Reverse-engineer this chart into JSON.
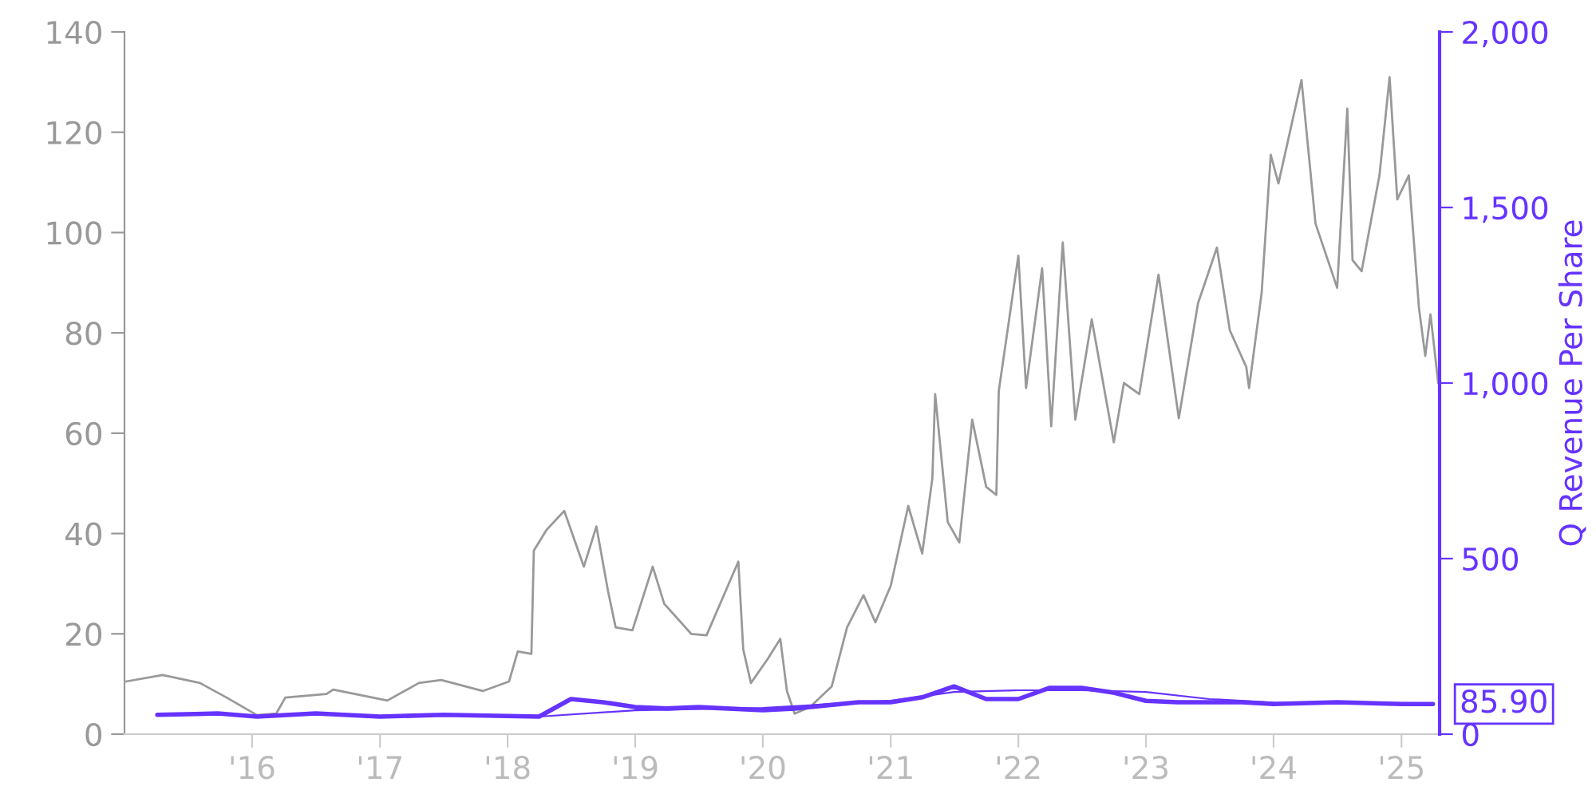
{
  "chart_data": {
    "type": "line",
    "y2label": "Q Revenue Per Share",
    "xlim": [
      "2015-01-01",
      "2025-04-20"
    ],
    "xticks": [
      {
        "value": "2016-01-01",
        "label": "'16"
      },
      {
        "value": "2017-01-01",
        "label": "'17"
      },
      {
        "value": "2018-01-01",
        "label": "'18"
      },
      {
        "value": "2019-01-01",
        "label": "'19"
      },
      {
        "value": "2020-01-01",
        "label": "'20"
      },
      {
        "value": "2021-01-01",
        "label": "'21"
      },
      {
        "value": "2022-01-01",
        "label": "'22"
      },
      {
        "value": "2023-01-01",
        "label": "'23"
      },
      {
        "value": "2024-01-01",
        "label": "'24"
      },
      {
        "value": "2025-01-01",
        "label": "'25"
      }
    ],
    "ylim": [
      0,
      140
    ],
    "yticks": [
      0,
      20,
      40,
      60,
      80,
      100,
      120,
      140
    ],
    "y2lim": [
      0,
      2000
    ],
    "y2ticks": [
      {
        "value": 0,
        "label": "0"
      },
      {
        "value": 500,
        "label": "500"
      },
      {
        "value": 1000,
        "label": "1,000"
      },
      {
        "value": 1500,
        "label": "1,500"
      },
      {
        "value": 2000,
        "label": "2,000"
      }
    ],
    "grid": false,
    "legend": false,
    "marker": "none",
    "line_style": "solid",
    "series": [
      {
        "color": "#999999",
        "x": [
          "2015-01-05",
          "2015-04-20",
          "2015-08-05",
          "2015-10-20",
          "2016-01-15",
          "2016-03-10",
          "2016-04-05",
          "2016-08-01",
          "2016-08-20",
          "2017-01-22",
          "2017-04-22",
          "2017-06-25",
          "2017-10-22",
          "2018-01-05",
          "2018-01-30",
          "2018-03-10",
          "2018-03-17",
          "2018-04-22",
          "2018-06-12",
          "2018-08-07",
          "2018-09-12",
          "2018-10-15",
          "2018-11-06",
          "2018-12-24",
          "2019-02-20",
          "2019-03-25",
          "2019-06-10",
          "2019-07-24",
          "2019-10-23",
          "2019-11-06",
          "2019-11-28",
          "2020-01-15",
          "2020-02-20",
          "2020-03-10",
          "2020-04-01",
          "2020-05-15",
          "2020-07-16",
          "2020-08-29",
          "2020-10-15",
          "2020-11-18",
          "2021-01-01",
          "2021-02-20",
          "2021-04-01",
          "2021-04-30",
          "2021-05-08",
          "2021-06-13",
          "2021-07-16",
          "2021-08-22",
          "2021-10-01",
          "2021-10-30",
          "2021-11-06",
          "2022-01-01",
          "2022-01-23",
          "2022-03-10",
          "2022-04-05",
          "2022-05-08",
          "2022-06-13",
          "2022-07-30",
          "2022-10-01",
          "2022-10-30",
          "2022-12-13",
          "2023-02-06",
          "2023-04-05",
          "2023-05-30",
          "2023-07-23",
          "2023-08-29",
          "2023-10-15",
          "2023-10-23",
          "2023-11-28",
          "2023-12-24",
          "2024-01-15",
          "2024-03-21",
          "2024-04-30",
          "2024-07-01",
          "2024-07-30",
          "2024-08-14",
          "2024-09-09",
          "2024-10-30",
          "2024-11-28",
          "2024-12-20",
          "2025-01-22",
          "2025-02-20",
          "2025-03-10",
          "2025-03-25",
          "2025-04-16"
        ],
        "values": [
          10.5,
          11.8,
          10.2,
          7.3,
          3.8,
          4.1,
          7.3,
          8,
          8.9,
          6.7,
          10.2,
          10.8,
          8.6,
          10.5,
          16.5,
          16,
          36.6,
          40.7,
          44.5,
          33.4,
          41.4,
          28.6,
          21.3,
          20.7,
          33.4,
          26,
          20,
          19.7,
          34.4,
          16.9,
          10.2,
          15,
          19,
          8.6,
          4.1,
          5.4,
          9.5,
          21.3,
          27.7,
          22.3,
          29.6,
          45.5,
          36,
          51,
          67.8,
          42.3,
          38.2,
          62.7,
          49.3,
          47.7,
          68.4,
          95.4,
          69,
          92.9,
          61.4,
          98,
          62.7,
          82.7,
          58.2,
          70,
          67.8,
          91.6,
          63,
          85.9,
          97,
          80.5,
          73.2,
          69,
          88,
          115.5,
          109.8,
          130.4,
          101.8,
          89,
          124.7,
          94.5,
          92.3,
          111.4,
          131,
          106.6,
          111.4,
          85,
          75.4,
          83.7,
          70
        ]
      },
      {
        "color": "#6633ff",
        "axis": "y2",
        "x": [
          "2015-04-05",
          "2015-09-25",
          "2016-01-15",
          "2016-07-01",
          "2017-01-01",
          "2017-07-01",
          "2018-04-01",
          "2018-07-01",
          "2018-10-01",
          "2019-01-01",
          "2019-04-01",
          "2019-07-01",
          "2020-01-01",
          "2020-04-01",
          "2020-10-01",
          "2021-01-01",
          "2021-04-01",
          "2021-07-01",
          "2021-10-01",
          "2022-01-01",
          "2022-04-01",
          "2022-07-01",
          "2022-10-01",
          "2023-01-01",
          "2023-04-01",
          "2023-10-01",
          "2024-01-01",
          "2024-07-01",
          "2025-01-01",
          "2025-04-01"
        ],
        "values": [
          55,
          59,
          50,
          59,
          50,
          55,
          50,
          100,
          91,
          77,
          73,
          77,
          68,
          73,
          91,
          91,
          105,
          136,
          100,
          100,
          132,
          132,
          118,
          95,
          91,
          91,
          86,
          91,
          86,
          85.9
        ],
        "value_labels": [
          null,
          null,
          null,
          null,
          null,
          null,
          null,
          null,
          null,
          null,
          null,
          null,
          null,
          null,
          null,
          null,
          null,
          null,
          null,
          null,
          null,
          null,
          null,
          null,
          null,
          null,
          null,
          null,
          null,
          "85.90"
        ]
      },
      {
        "color": "#6633ff",
        "axis": "y2",
        "x": [
          "2015-04-05",
          "2015-09-25",
          "2016-01-15",
          "2016-07-01",
          "2017-01-01",
          "2017-07-01",
          "2018-04-01",
          "2019-01-01",
          "2020-01-01",
          "2021-01-01",
          "2021-07-01",
          "2022-01-01",
          "2022-07-01",
          "2023-01-01",
          "2023-07-01",
          "2024-01-01",
          "2025-04-01"
        ],
        "values": [
          55,
          59,
          50,
          59,
          50,
          55,
          50,
          68,
          75,
          95,
          120,
          125,
          125,
          120,
          100,
          90,
          88
        ]
      }
    ]
  }
}
